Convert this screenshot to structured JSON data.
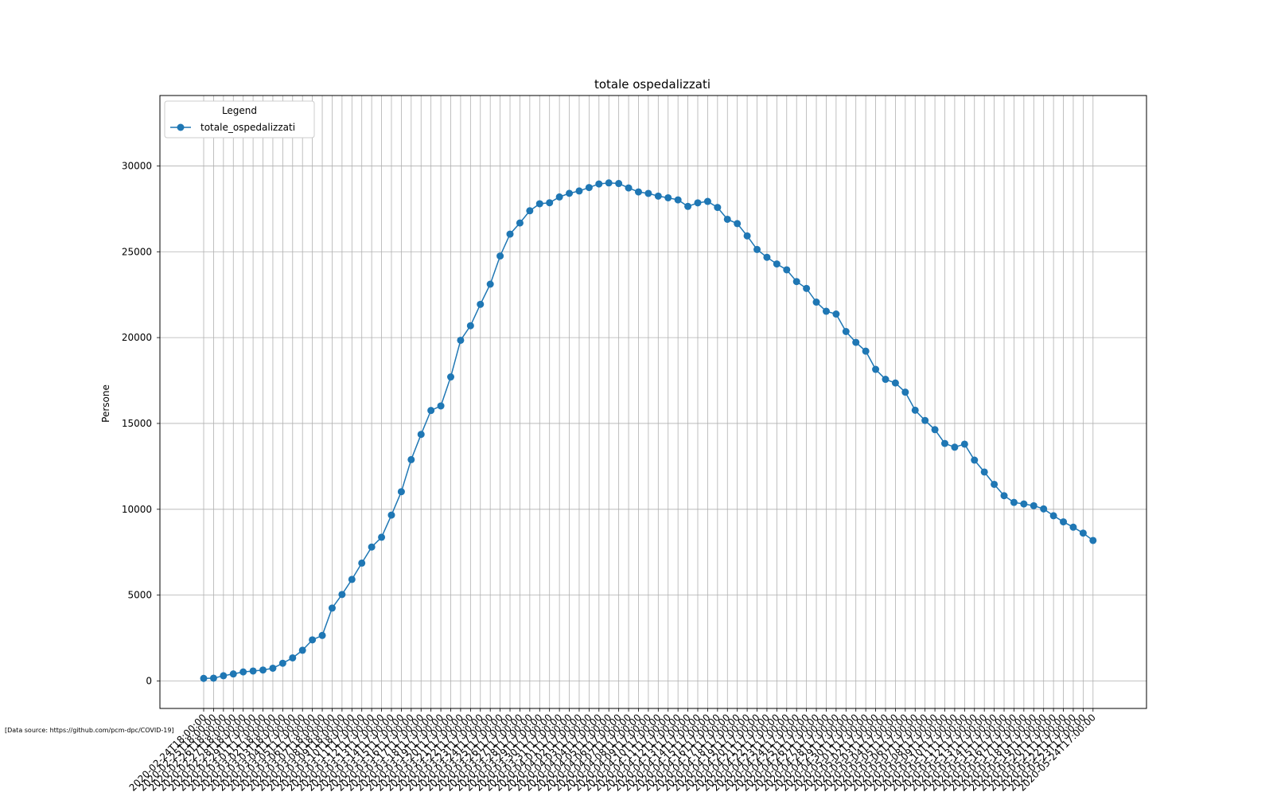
{
  "source_note": "[Data source: https://github.com/pcm-dpc/COVID-19]",
  "colors": {
    "series": "#1f77b4",
    "grid": "#b0b0b0",
    "axis": "#000000"
  },
  "chart_data": {
    "type": "line",
    "title": "totale ospedalizzati",
    "xlabel": "",
    "ylabel": "Persone",
    "ylim": [
      -1600,
      34100
    ],
    "yticks": [
      0,
      5000,
      10000,
      15000,
      20000,
      25000,
      30000
    ],
    "grid": true,
    "marker": "circle",
    "legend": {
      "title": "Legend",
      "placement": "top-left"
    },
    "x": [
      "2020-02-24T18:00:00",
      "2020-02-25T18:00:00",
      "2020-02-26T18:00:00",
      "2020-02-27T18:00:00",
      "2020-02-28T18:00:00",
      "2020-02-29T17:00:00",
      "2020-03-01T17:00:00",
      "2020-03-02T18:00:00",
      "2020-03-03T18:00:00",
      "2020-03-04T17:00:00",
      "2020-03-05T17:00:00",
      "2020-03-06T17:00:00",
      "2020-03-07T18:00:00",
      "2020-03-08T18:00:00",
      "2020-03-09T18:00:00",
      "2020-03-10T18:00:00",
      "2020-03-11T17:00:00",
      "2020-03-12T17:00:00",
      "2020-03-13T17:00:00",
      "2020-03-14T17:00:00",
      "2020-03-15T17:00:00",
      "2020-03-16T17:00:00",
      "2020-03-17T17:00:00",
      "2020-03-18T17:00:00",
      "2020-03-19T17:00:00",
      "2020-03-20T17:00:00",
      "2020-03-21T17:00:00",
      "2020-03-22T17:00:00",
      "2020-03-23T17:00:00",
      "2020-03-24T17:00:00",
      "2020-03-25T17:00:00",
      "2020-03-26T17:00:00",
      "2020-03-27T17:00:00",
      "2020-03-28T17:00:00",
      "2020-03-29T17:00:00",
      "2020-03-30T17:00:00",
      "2020-03-31T17:00:00",
      "2020-04-01T17:00:00",
      "2020-04-02T17:00:00",
      "2020-04-03T17:00:00",
      "2020-04-04T17:00:00",
      "2020-04-05T17:00:00",
      "2020-04-06T17:00:00",
      "2020-04-07T17:00:00",
      "2020-04-08T17:00:00",
      "2020-04-09T17:00:00",
      "2020-04-10T17:00:00",
      "2020-04-11T17:00:00",
      "2020-04-12T17:00:00",
      "2020-04-13T17:00:00",
      "2020-04-14T17:00:00",
      "2020-04-15T17:00:00",
      "2020-04-16T17:00:00",
      "2020-04-17T17:00:00",
      "2020-04-18T17:00:00",
      "2020-04-19T17:00:00",
      "2020-04-20T17:00:00",
      "2020-04-21T17:00:00",
      "2020-04-22T17:00:00",
      "2020-04-23T17:00:00",
      "2020-04-24T17:00:00",
      "2020-04-25T17:00:00",
      "2020-04-26T17:00:00",
      "2020-04-27T17:00:00",
      "2020-04-28T17:00:00",
      "2020-04-29T17:00:00",
      "2020-04-30T17:00:00",
      "2020-05-01T17:00:00",
      "2020-05-02T17:00:00",
      "2020-05-03T17:00:00",
      "2020-05-04T17:00:00",
      "2020-05-05T17:00:00",
      "2020-05-06T17:00:00",
      "2020-05-07T17:00:00",
      "2020-05-08T17:00:00",
      "2020-05-09T17:00:00",
      "2020-05-10T17:00:00",
      "2020-05-11T17:00:00",
      "2020-05-12T17:00:00",
      "2020-05-13T17:00:00",
      "2020-05-14T17:00:00",
      "2020-05-15T17:00:00",
      "2020-05-16T17:00:00",
      "2020-05-17T17:00:00",
      "2020-05-18T17:00:00",
      "2020-05-19T17:00:00",
      "2020-05-20T17:00:00",
      "2020-05-21T17:00:00",
      "2020-05-22T17:00:00",
      "2020-05-23T17:00:00",
      "2020-05-24T17:00:00"
    ],
    "series": [
      {
        "name": "totale_ospedalizzati",
        "values": [
          150,
          164,
          304,
          409,
          527,
          581,
          639,
          742,
          1034,
          1346,
          1790,
          2394,
          2651,
          4247,
          5038,
          5915,
          6866,
          7803,
          8372,
          9663,
          11025,
          12894,
          14363,
          15757,
          16020,
          17708,
          19846,
          20692,
          21937,
          23112,
          24753,
          26029,
          26676,
          27386,
          27795,
          27855,
          28192,
          28403,
          28540,
          28741,
          28949,
          29010,
          28976,
          28718,
          28485,
          28399,
          28242,
          28144,
          28023,
          27643,
          27847,
          27932,
          27581,
          26893,
          26640,
          25924,
          25132,
          24679,
          24290,
          23948,
          23264,
          22863,
          22068,
          21533,
          21372,
          20353,
          19723,
          19210,
          18149,
          17569,
          17357,
          16823,
          15769,
          15174,
          14636,
          13834,
          13618,
          13795,
          12865,
          12172,
          11453,
          10792,
          10400,
          10311,
          10207,
          10022,
          9624,
          9269,
          8957,
          8613,
          8185
        ]
      }
    ]
  }
}
